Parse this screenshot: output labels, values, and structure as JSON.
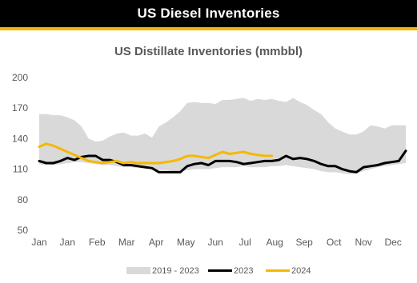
{
  "header": {
    "title": "US Diesel Inventories"
  },
  "colors": {
    "banner_bg": "#000000",
    "banner_border": "#f2b705",
    "band": "#d9d9d9",
    "line_2023": "#000000",
    "line_2024": "#f5b800"
  },
  "chart_data": {
    "type": "line",
    "title": "US Distillate Inventories (mmbbl)",
    "xlabel": "",
    "ylabel": "",
    "ylim": [
      50,
      200
    ],
    "yticks": [
      50,
      80,
      110,
      140,
      170,
      200
    ],
    "xlim": [
      0,
      52
    ],
    "xtick_positions": [
      0,
      4,
      8.2,
      12.4,
      16.6,
      20.8,
      25,
      29.2,
      33.4,
      37.6,
      41.8,
      46,
      50.2
    ],
    "xtick_labels": [
      "Jan",
      "Jan",
      "Feb",
      "Mar",
      "Apr",
      "May",
      "Jun",
      "Jul",
      "Aug",
      "Sep",
      "Oct",
      "Nov",
      "Dec"
    ],
    "grid": false,
    "legend_position": "bottom",
    "x": [
      0,
      1,
      2,
      3,
      4,
      5,
      6,
      7,
      8,
      9,
      10,
      11,
      12,
      13,
      14,
      15,
      16,
      17,
      18,
      19,
      20,
      21,
      22,
      23,
      24,
      25,
      26,
      27,
      28,
      29,
      30,
      31,
      32,
      33,
      34,
      35,
      36,
      37,
      38,
      39,
      40,
      41,
      42,
      43,
      44,
      45,
      46,
      47,
      48,
      49,
      50,
      51,
      52
    ],
    "series": [
      {
        "name": "2019 - 2023",
        "kind": "range",
        "high": [
          164,
          164,
          163,
          163,
          161,
          158,
          152,
          140,
          137,
          138,
          142,
          145,
          146,
          143,
          143,
          145,
          141,
          152,
          156,
          161,
          167,
          175,
          176,
          175,
          175,
          174,
          178,
          178,
          179,
          180,
          177,
          179,
          178,
          179,
          177,
          176,
          180,
          176,
          173,
          168,
          164,
          156,
          150,
          147,
          144,
          144,
          147,
          153,
          152,
          150,
          153,
          153,
          153
        ],
        "low": [
          115,
          114,
          114,
          115,
          116,
          117,
          117,
          116,
          115,
          114,
          114,
          113,
          112,
          112,
          111,
          111,
          110,
          109,
          109,
          108,
          108,
          109,
          110,
          110,
          110,
          111,
          112,
          112,
          112,
          113,
          112,
          112,
          112,
          113,
          113,
          114,
          113,
          112,
          111,
          110,
          108,
          107,
          107,
          106,
          105,
          106,
          108,
          110,
          112,
          113,
          114,
          115,
          116
        ]
      },
      {
        "name": "2023",
        "kind": "line",
        "values": [
          118,
          116,
          116,
          118,
          121,
          119,
          122,
          123,
          123,
          119,
          119,
          117,
          114,
          114,
          113,
          112,
          111,
          107,
          107,
          107,
          107,
          113,
          115,
          116,
          114,
          118,
          118,
          118,
          117,
          115,
          116,
          117,
          118,
          118,
          119,
          123,
          120,
          121,
          120,
          118,
          115,
          113,
          113,
          110,
          108,
          107,
          112,
          113,
          114,
          116,
          117,
          118,
          128
        ]
      },
      {
        "name": "2024",
        "kind": "line",
        "values": [
          132,
          135,
          133,
          130,
          127,
          124,
          121,
          118,
          117,
          116,
          117,
          118,
          116,
          117,
          116,
          116,
          116,
          116,
          117,
          118,
          120,
          123,
          123,
          122,
          121,
          124,
          127,
          125,
          126,
          127,
          125,
          124,
          123,
          123,
          null,
          null,
          null,
          null,
          null,
          null,
          null,
          null,
          null,
          null,
          null,
          null,
          null,
          null,
          null,
          null,
          null,
          null,
          null
        ]
      }
    ]
  }
}
